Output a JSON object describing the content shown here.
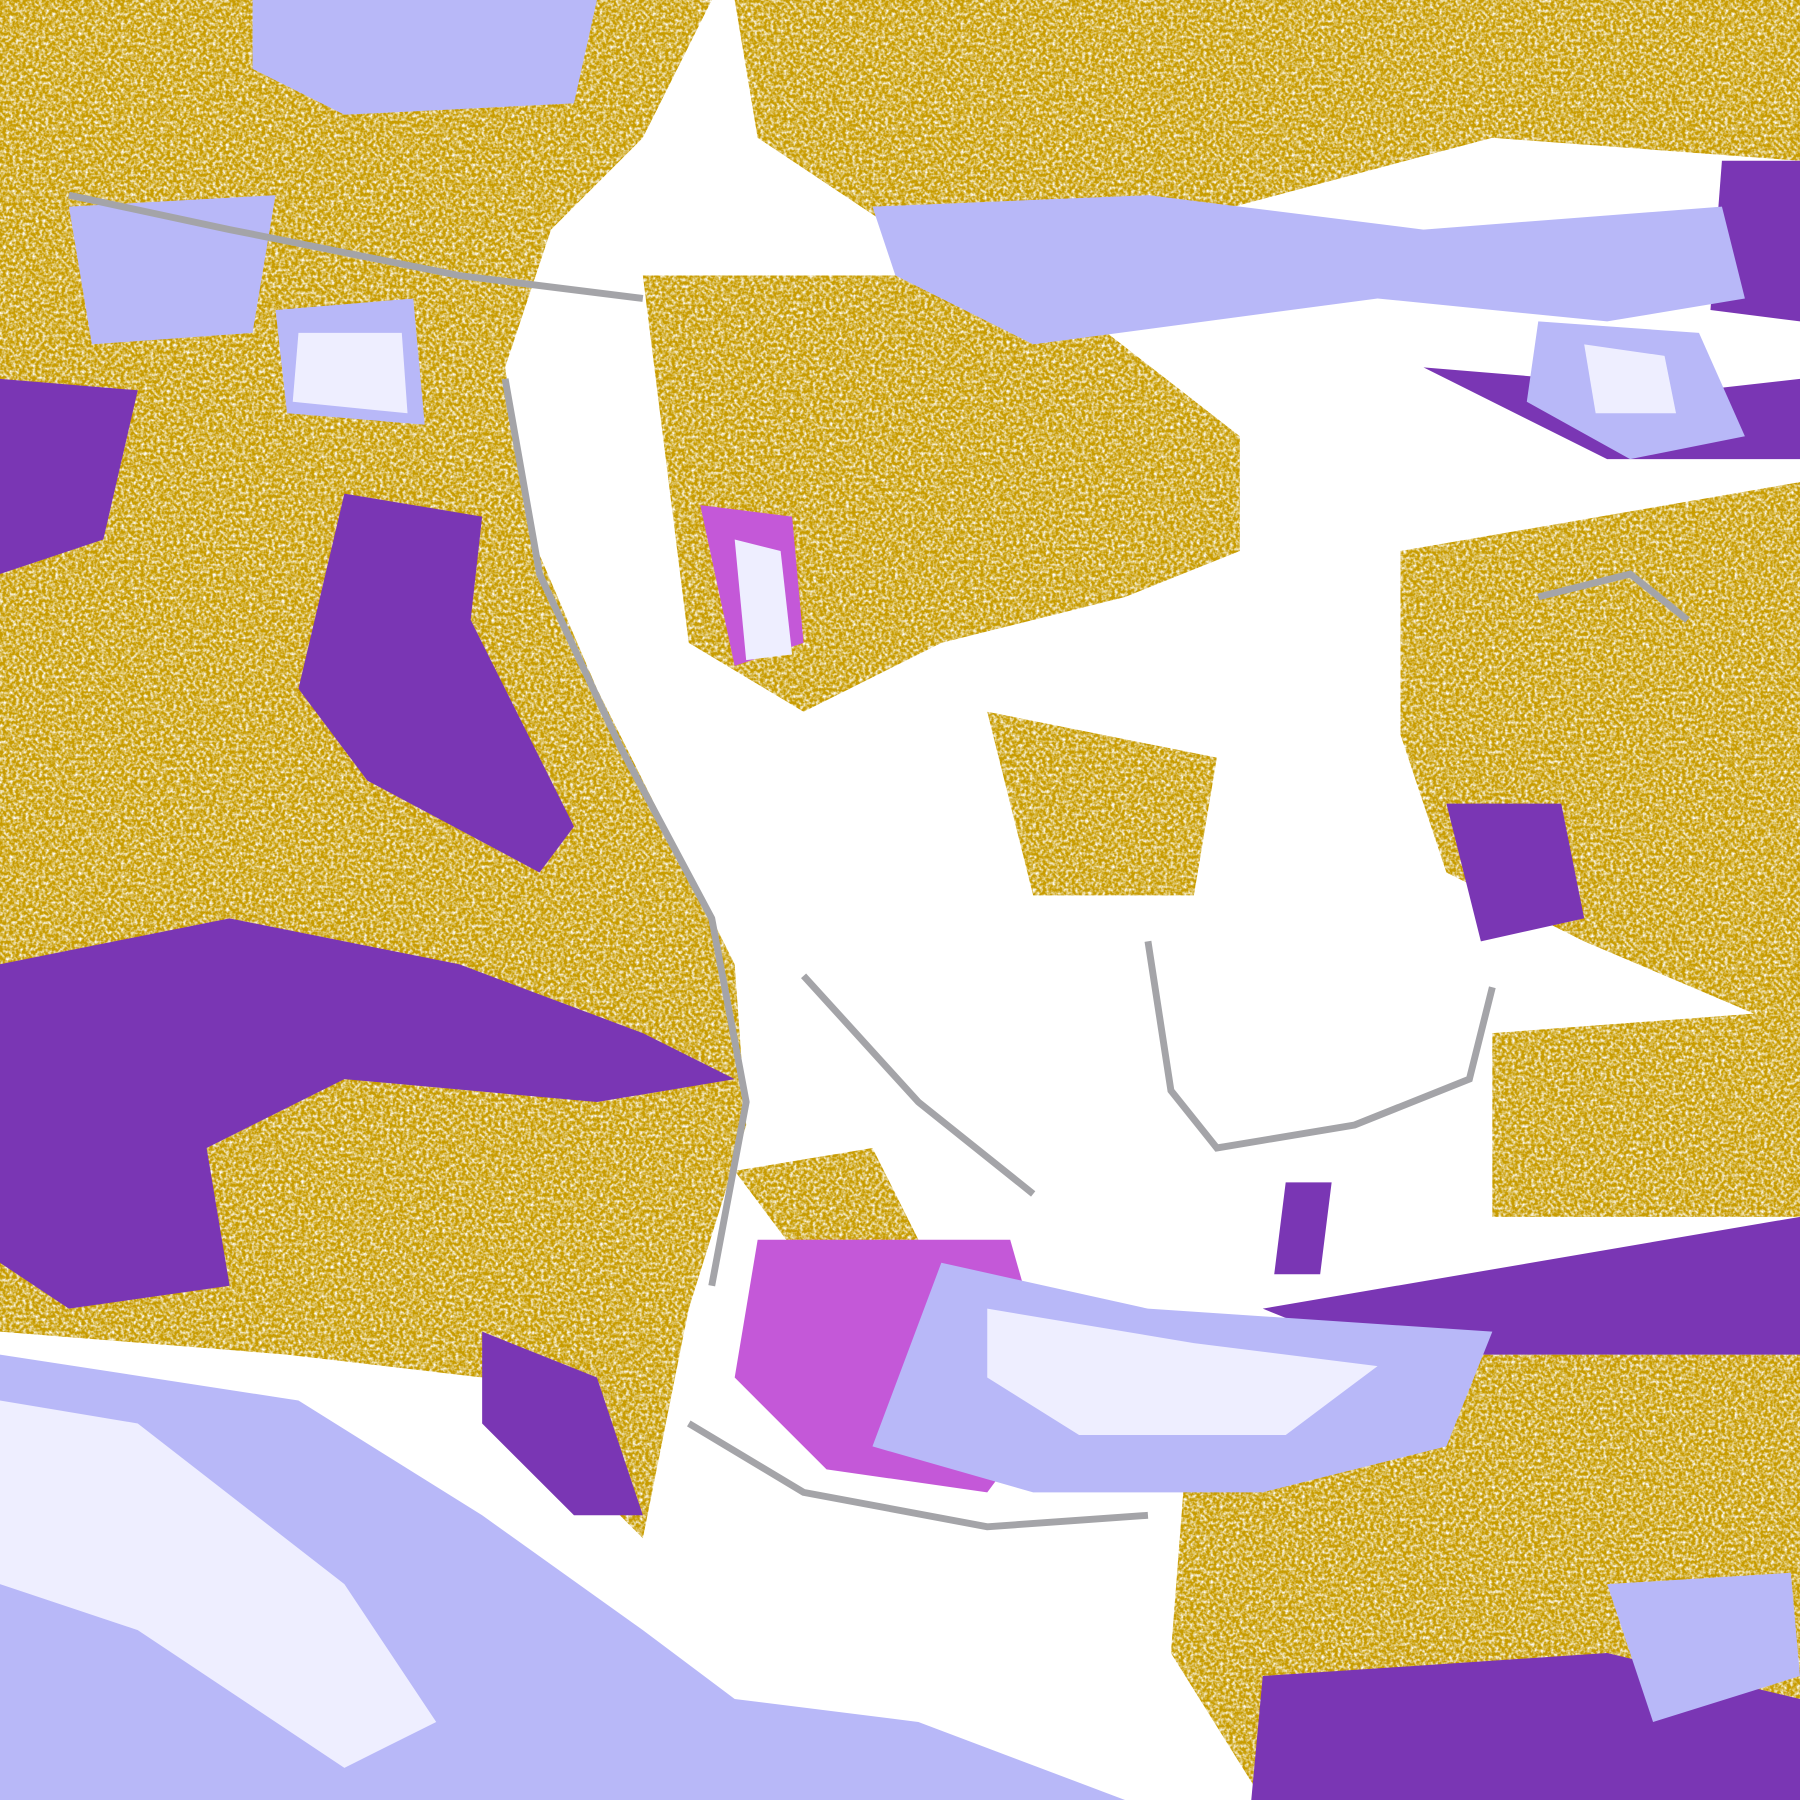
{
  "image": {
    "kind": "classified satellite cloud imagery",
    "colors": {
      "background": "#ffffff",
      "gold": "#c89c00",
      "purple": "#7a36b4",
      "magenta": "#c458d8",
      "lavender": "#b8b8f8",
      "pale": "#eeeeff",
      "gray": "#a4a4a8"
    }
  }
}
